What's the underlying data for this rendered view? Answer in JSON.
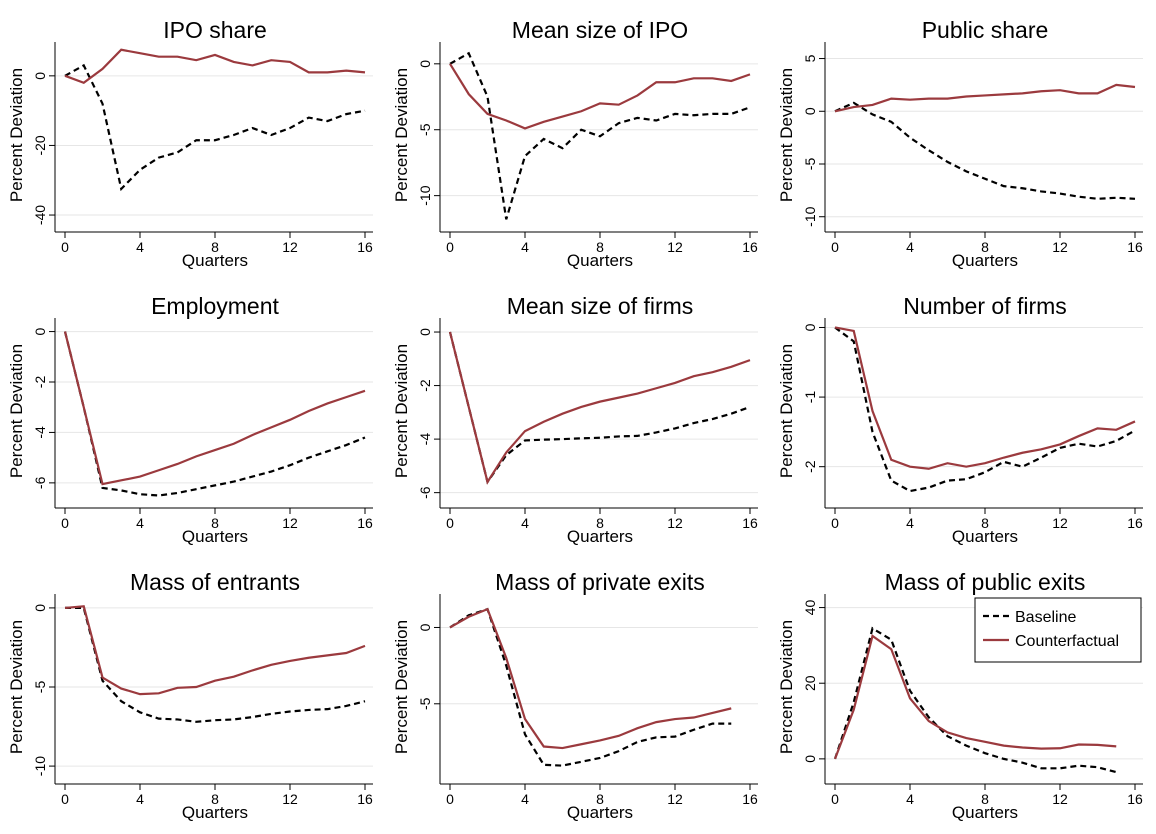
{
  "chart_data": [
    {
      "type": "line",
      "title": "IPO share",
      "x_label": "Quarters",
      "y_label": "Percent Deviation",
      "x": [
        0,
        1,
        2,
        3,
        4,
        5,
        6,
        7,
        8,
        9,
        10,
        11,
        12,
        13,
        14,
        15,
        16
      ],
      "xlim": [
        0,
        16
      ],
      "xticks": [
        0,
        4,
        8,
        12,
        16
      ],
      "ylim": [
        -42,
        8
      ],
      "yticks": [
        0,
        -20,
        -40
      ],
      "grid": true,
      "series": [
        {
          "color": "#000000",
          "style": "dashed",
          "values": [
            0,
            3,
            -8,
            -32.5,
            -27,
            -23.5,
            -22,
            -18.5,
            -18.5,
            -17,
            -15,
            -17,
            -15,
            -12,
            -13,
            -11,
            -10
          ]
        },
        {
          "color": "#9b3a3e",
          "style": "solid",
          "values": [
            0,
            -2,
            2,
            7.5,
            6.5,
            5.5,
            5.5,
            4.5,
            6,
            4,
            3,
            4.5,
            4,
            1,
            1,
            1.5,
            1
          ]
        }
      ]
    },
    {
      "type": "line",
      "title": "Mean size of IPO",
      "x_label": "Quarters",
      "y_label": "Percent Deviation",
      "x": [
        0,
        1,
        2,
        3,
        4,
        5,
        6,
        7,
        8,
        9,
        10,
        11,
        12,
        13,
        14,
        15,
        16
      ],
      "xlim": [
        0,
        16
      ],
      "xticks": [
        0,
        4,
        8,
        12,
        16
      ],
      "ylim": [
        -12,
        1.2
      ],
      "yticks": [
        0,
        -5,
        -10
      ],
      "grid": true,
      "series": [
        {
          "color": "#000000",
          "style": "dashed",
          "values": [
            0,
            0.8,
            -2.5,
            -11.8,
            -7,
            -5.7,
            -6.4,
            -5,
            -5.5,
            -4.5,
            -4.1,
            -4.3,
            -3.8,
            -3.9,
            -3.8,
            -3.8,
            -3.3
          ]
        },
        {
          "color": "#9b3a3e",
          "style": "solid",
          "values": [
            0,
            -2.3,
            -3.8,
            -4.3,
            -4.9,
            -4.4,
            -4,
            -3.6,
            -3,
            -3.1,
            -2.4,
            -1.4,
            -1.4,
            -1.1,
            -1.1,
            -1.3,
            -0.8
          ]
        }
      ]
    },
    {
      "type": "line",
      "title": "Public share",
      "x_label": "Quarters",
      "y_label": "Percent Deviation",
      "x": [
        0,
        1,
        2,
        3,
        4,
        5,
        6,
        7,
        8,
        9,
        10,
        11,
        12,
        13,
        14,
        15,
        16
      ],
      "xlim": [
        0,
        16
      ],
      "xticks": [
        0,
        4,
        8,
        12,
        16
      ],
      "ylim": [
        -10.5,
        6
      ],
      "yticks": [
        5,
        0,
        -5,
        -10
      ],
      "grid": true,
      "series": [
        {
          "color": "#000000",
          "style": "dashed",
          "values": [
            0,
            0.8,
            -0.3,
            -1,
            -2.5,
            -3.7,
            -4.8,
            -5.7,
            -6.4,
            -7.1,
            -7.3,
            -7.6,
            -7.8,
            -8.1,
            -8.3,
            -8.2,
            -8.3
          ]
        },
        {
          "color": "#9b3a3e",
          "style": "solid",
          "values": [
            0,
            0.4,
            0.6,
            1.2,
            1.1,
            1.2,
            1.2,
            1.4,
            1.5,
            1.6,
            1.7,
            1.9,
            2,
            1.7,
            1.7,
            2.5,
            2.3
          ]
        }
      ]
    },
    {
      "type": "line",
      "title": "Employment",
      "x_label": "Quarters",
      "y_label": "Percent Deviation",
      "x": [
        0,
        1,
        2,
        3,
        4,
        5,
        6,
        7,
        8,
        9,
        10,
        11,
        12,
        13,
        14,
        15,
        16
      ],
      "xlim": [
        0,
        16
      ],
      "xticks": [
        0,
        4,
        8,
        12,
        16
      ],
      "ylim": [
        -6.6,
        0.3
      ],
      "yticks": [
        0,
        -2,
        -4,
        -6
      ],
      "grid": true,
      "series": [
        {
          "color": "#000000",
          "style": "dashed",
          "values": [
            0,
            -3,
            -6.2,
            -6.3,
            -6.45,
            -6.5,
            -6.4,
            -6.25,
            -6.1,
            -5.95,
            -5.75,
            -5.55,
            -5.3,
            -5,
            -4.75,
            -4.5,
            -4.2
          ]
        },
        {
          "color": "#9b3a3e",
          "style": "solid",
          "values": [
            0,
            -3,
            -6.05,
            -5.9,
            -5.75,
            -5.5,
            -5.25,
            -4.95,
            -4.7,
            -4.45,
            -4.1,
            -3.8,
            -3.5,
            -3.15,
            -2.85,
            -2.6,
            -2.35
          ]
        }
      ]
    },
    {
      "type": "line",
      "title": "Mean size of firms",
      "x_label": "Quarters",
      "y_label": "Percent Deviation",
      "x": [
        0,
        1,
        2,
        3,
        4,
        5,
        6,
        7,
        8,
        9,
        10,
        11,
        12,
        13,
        14,
        15,
        16
      ],
      "xlim": [
        0,
        16
      ],
      "xticks": [
        0,
        4,
        8,
        12,
        16
      ],
      "ylim": [
        -6.2,
        0.3
      ],
      "yticks": [
        0,
        -2,
        -4,
        -6
      ],
      "grid": true,
      "series": [
        {
          "color": "#000000",
          "style": "dashed",
          "values": [
            0,
            -2.8,
            -5.6,
            -4.6,
            -4.05,
            -4.02,
            -4,
            -3.97,
            -3.95,
            -3.9,
            -3.88,
            -3.75,
            -3.6,
            -3.4,
            -3.25,
            -3.05,
            -2.8
          ]
        },
        {
          "color": "#9b3a3e",
          "style": "solid",
          "values": [
            0,
            -2.8,
            -5.6,
            -4.5,
            -3.7,
            -3.35,
            -3.05,
            -2.8,
            -2.6,
            -2.45,
            -2.3,
            -2.1,
            -1.9,
            -1.65,
            -1.5,
            -1.3,
            -1.05
          ]
        }
      ]
    },
    {
      "type": "line",
      "title": "Number of firms",
      "x_label": "Quarters",
      "y_label": "Percent Deviation",
      "x": [
        0,
        1,
        2,
        3,
        4,
        5,
        6,
        7,
        8,
        9,
        10,
        11,
        12,
        13,
        14,
        15,
        16
      ],
      "xlim": [
        0,
        16
      ],
      "xticks": [
        0,
        4,
        8,
        12,
        16
      ],
      "ylim": [
        -2.45,
        0.05
      ],
      "yticks": [
        0,
        -1,
        -2
      ],
      "grid": true,
      "series": [
        {
          "color": "#000000",
          "style": "dashed",
          "values": [
            0,
            -0.2,
            -1.5,
            -2.2,
            -2.35,
            -2.3,
            -2.2,
            -2.18,
            -2.08,
            -1.93,
            -2,
            -1.87,
            -1.73,
            -1.67,
            -1.71,
            -1.63,
            -1.48
          ]
        },
        {
          "color": "#9b3a3e",
          "style": "solid",
          "values": [
            0,
            -0.05,
            -1.2,
            -1.9,
            -2,
            -2.03,
            -1.95,
            -2,
            -1.95,
            -1.87,
            -1.8,
            -1.75,
            -1.68,
            -1.56,
            -1.45,
            -1.47,
            -1.35
          ]
        }
      ]
    },
    {
      "type": "line",
      "title": "Mass of entrants",
      "x_label": "Quarters",
      "y_label": "Percent Deviation",
      "x": [
        0,
        1,
        2,
        3,
        4,
        5,
        6,
        7,
        8,
        9,
        10,
        11,
        12,
        13,
        14,
        15,
        16
      ],
      "xlim": [
        0,
        16
      ],
      "xticks": [
        0,
        4,
        8,
        12,
        16
      ],
      "ylim": [
        -10.5,
        0.5
      ],
      "yticks": [
        0,
        -5,
        -10
      ],
      "grid": true,
      "series": [
        {
          "color": "#000000",
          "style": "dashed",
          "values": [
            0,
            0,
            -4.6,
            -5.9,
            -6.6,
            -7,
            -7.05,
            -7.2,
            -7.1,
            -7.05,
            -6.9,
            -6.7,
            -6.55,
            -6.45,
            -6.4,
            -6.2,
            -5.9
          ]
        },
        {
          "color": "#9b3a3e",
          "style": "solid",
          "values": [
            0,
            0.1,
            -4.4,
            -5.1,
            -5.45,
            -5.4,
            -5.05,
            -5,
            -4.6,
            -4.35,
            -3.95,
            -3.6,
            -3.35,
            -3.15,
            -3,
            -2.85,
            -2.4
          ]
        }
      ]
    },
    {
      "type": "line",
      "title": "Mass of private exits",
      "x_label": "Quarters",
      "y_label": "Percent Deviation",
      "x": [
        0,
        1,
        2,
        3,
        4,
        5,
        6,
        7,
        8,
        9,
        10,
        11,
        12,
        13,
        14,
        15
      ],
      "xlim": [
        0,
        16
      ],
      "xticks": [
        0,
        4,
        8,
        12,
        16
      ],
      "ylim": [
        -9.6,
        1.8
      ],
      "yticks": [
        0,
        -5
      ],
      "grid": true,
      "series": [
        {
          "color": "#000000",
          "style": "dashed",
          "values": [
            0,
            0.8,
            1.2,
            -2.5,
            -7,
            -9,
            -9.05,
            -8.8,
            -8.55,
            -8.1,
            -7.5,
            -7.2,
            -7.15,
            -6.7,
            -6.3,
            -6.3
          ]
        },
        {
          "color": "#9b3a3e",
          "style": "solid",
          "values": [
            0,
            0.7,
            1.2,
            -2,
            -6,
            -7.8,
            -7.9,
            -7.65,
            -7.4,
            -7.1,
            -6.6,
            -6.2,
            -6,
            -5.9,
            -5.6,
            -5.3
          ]
        }
      ]
    },
    {
      "type": "line",
      "title": "Mass of public exits",
      "x_label": "Quarters",
      "y_label": "Percent Deviation",
      "x": [
        0,
        1,
        2,
        3,
        4,
        5,
        6,
        7,
        8,
        9,
        10,
        11,
        12,
        13,
        14,
        15
      ],
      "xlim": [
        0,
        16
      ],
      "xticks": [
        0,
        4,
        8,
        12,
        16
      ],
      "ylim": [
        -4,
        42
      ],
      "yticks": [
        0,
        20,
        40
      ],
      "grid": true,
      "legend": "upper right",
      "series": [
        {
          "name": "Baseline",
          "color": "#000000",
          "style": "dashed",
          "values": [
            0,
            15,
            34.5,
            31.5,
            18,
            11,
            6,
            3.5,
            1.5,
            0,
            -1,
            -2.5,
            -2.5,
            -1.8,
            -2.2,
            -3.5
          ]
        },
        {
          "name": "Counterfactual",
          "color": "#9b3a3e",
          "style": "solid",
          "values": [
            0,
            13,
            32.5,
            29,
            16,
            10,
            7,
            5.5,
            4.5,
            3.5,
            3,
            2.7,
            2.8,
            3.8,
            3.7,
            3.3
          ]
        }
      ]
    }
  ]
}
